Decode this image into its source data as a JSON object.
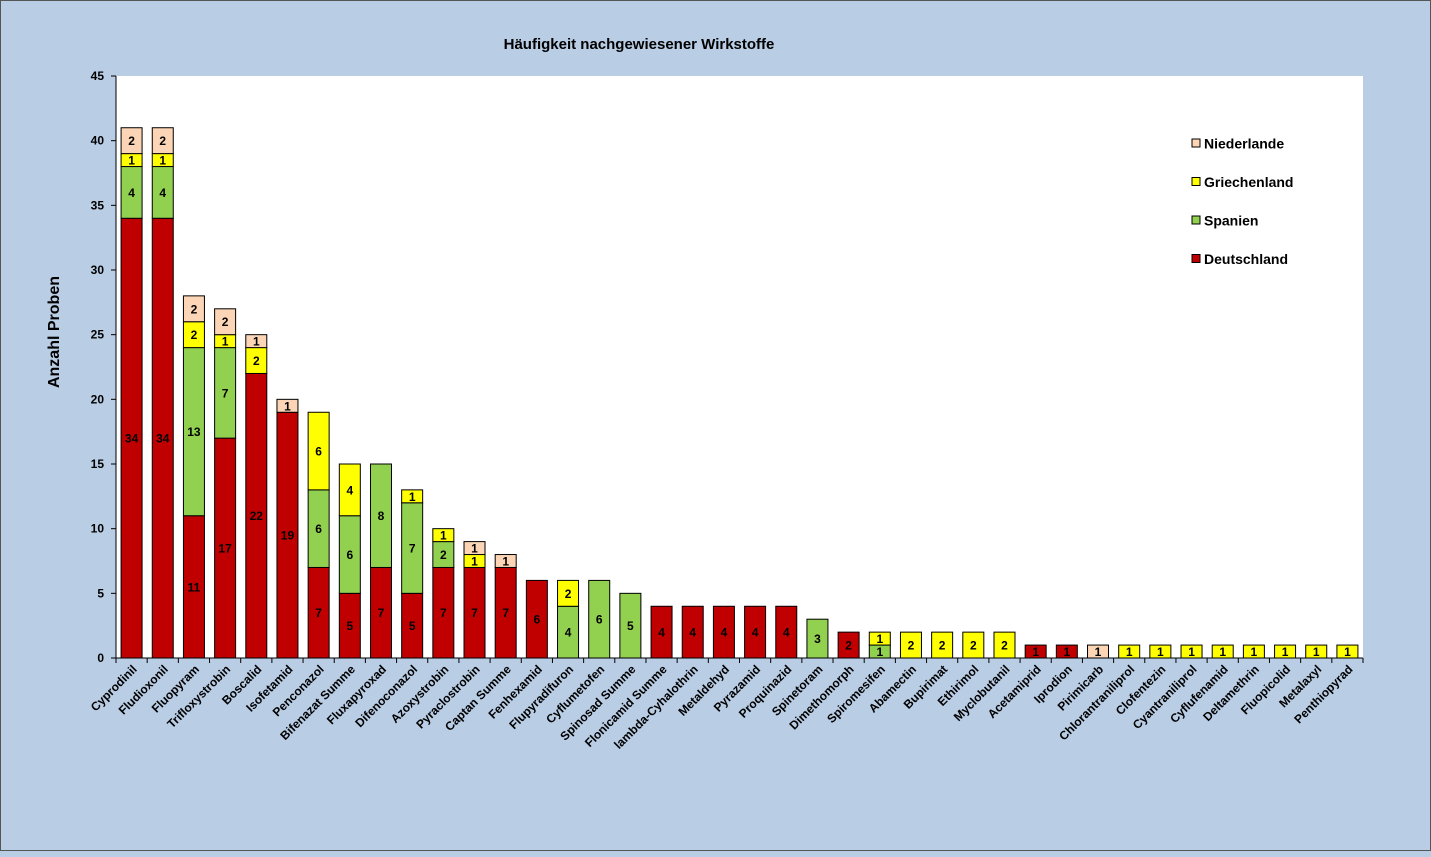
{
  "chart_data": {
    "type": "bar",
    "stacked": true,
    "title": "Häufigkeit nachgewiesener Wirkstoffe",
    "xlabel": "",
    "ylabel": "Anzahl Proben",
    "ylim": [
      0,
      45
    ],
    "yticks": [
      0,
      5,
      10,
      15,
      20,
      25,
      30,
      35,
      40,
      45
    ],
    "grid": false,
    "legend_position": "top-right",
    "categories": [
      "Cyprodinil",
      "Fludioxonil",
      "Fluopyram",
      "Trifloxystrobin",
      "Boscalid",
      "Isofetamid",
      "Penconazol",
      "Bifenazat Summe",
      "Fluxapyroxad",
      "Difenoconazol",
      "Azoxystrobin",
      "Pyraclostrobin",
      "Captan Summe",
      "Fenhexamid",
      "Flupyradifuron",
      "Cyflumetofen",
      "Spinosad Summe",
      "Flonicamid Summe",
      "lambda-Cyhalothrin",
      "Metaldehyd",
      "Pyrazamid",
      "Proquinazid",
      "Spinetoram",
      "Dimethomorph",
      "Spiromesifen",
      "Abamectin",
      "Bupirimat",
      "Ethirimol",
      "Myclobutanil",
      "Acetamiprid",
      "Iprodion",
      "Pirimicarb",
      "Chlorantraniliprol",
      "Clofentezin",
      "Cyantraniliprol",
      "Cyflufenamid",
      "Deltamethrin",
      "Fluopicolid",
      "Metalaxyl",
      "Penthiopyrad"
    ],
    "series": [
      {
        "name": "Deutschland",
        "color": "#c00000",
        "values": [
          34,
          34,
          11,
          17,
          22,
          19,
          7,
          5,
          7,
          5,
          7,
          7,
          7,
          6,
          0,
          0,
          0,
          4,
          4,
          4,
          4,
          4,
          0,
          2,
          0,
          0,
          0,
          0,
          0,
          1,
          1,
          0,
          0,
          0,
          0,
          0,
          0,
          0,
          0,
          0
        ]
      },
      {
        "name": "Spanien",
        "color": "#92d050",
        "values": [
          4,
          4,
          13,
          7,
          0,
          0,
          6,
          6,
          8,
          7,
          2,
          0,
          0,
          0,
          4,
          6,
          5,
          0,
          0,
          0,
          0,
          0,
          3,
          0,
          1,
          0,
          0,
          0,
          0,
          0,
          0,
          0,
          0,
          0,
          0,
          0,
          0,
          0,
          0,
          0
        ]
      },
      {
        "name": "Griechenland",
        "color": "#ffff00",
        "values": [
          1,
          1,
          2,
          1,
          2,
          0,
          6,
          4,
          0,
          1,
          1,
          1,
          0,
          0,
          2,
          0,
          0,
          0,
          0,
          0,
          0,
          0,
          0,
          0,
          1,
          2,
          2,
          2,
          2,
          0,
          0,
          0,
          1,
          1,
          1,
          1,
          1,
          1,
          1,
          1
        ]
      },
      {
        "name": "Niederlande",
        "color": "#fbd5b5",
        "values": [
          2,
          2,
          2,
          2,
          1,
          1,
          0,
          0,
          0,
          0,
          0,
          1,
          1,
          0,
          0,
          0,
          0,
          0,
          0,
          0,
          0,
          0,
          0,
          0,
          0,
          0,
          0,
          0,
          0,
          0,
          0,
          1,
          0,
          0,
          0,
          0,
          0,
          0,
          0,
          0
        ]
      }
    ],
    "legend_order": [
      "Niederlande",
      "Griechenland",
      "Spanien",
      "Deutschland"
    ]
  }
}
